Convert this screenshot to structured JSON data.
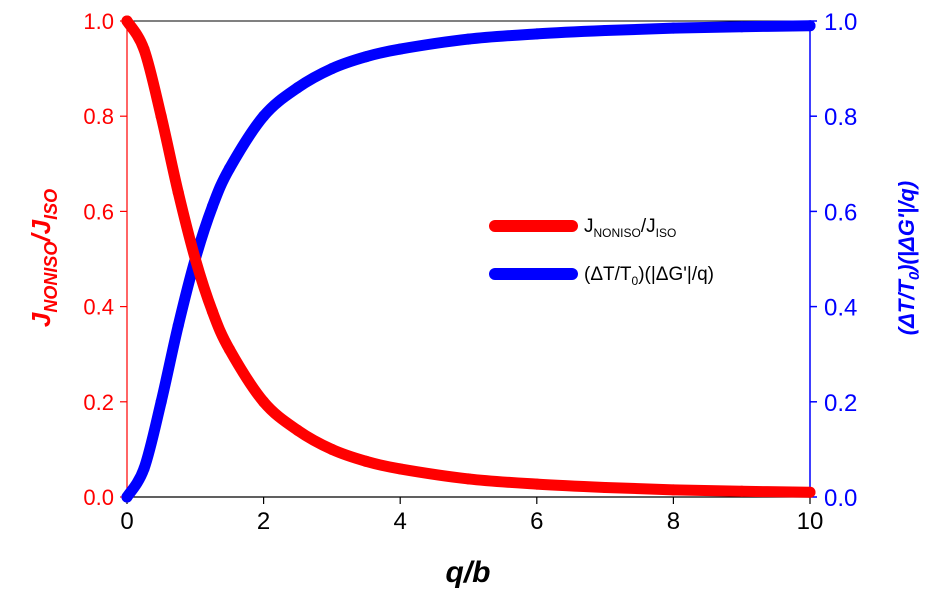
{
  "chart_data": {
    "type": "line",
    "xlabel": "q/b",
    "ylabel_left": "J_NONISO/J_ISO",
    "ylabel_right": "(ΔT/T0)(|ΔG'|/q)",
    "xlim": [
      0,
      10
    ],
    "ylim_left": [
      0,
      1
    ],
    "ylim_right": [
      0,
      1
    ],
    "x_ticks": [
      "0",
      "2",
      "4",
      "6",
      "8",
      "10"
    ],
    "y_ticks_left": [
      "0.0",
      "0.2",
      "0.4",
      "0.6",
      "0.8",
      "1.0"
    ],
    "y_ticks_right": [
      "0.0",
      "0.2",
      "0.4",
      "0.6",
      "0.8",
      "1.0"
    ],
    "grid": false,
    "legend_position": "center-right",
    "colors": {
      "left_axis": "#ff0000",
      "right_axis": "#0000ff",
      "series_red": "#ff0000",
      "series_blue": "#0000ff"
    },
    "x": [
      0,
      0.25,
      0.5,
      0.75,
      1,
      1.25,
      1.5,
      2,
      2.5,
      3,
      3.5,
      4,
      5,
      6,
      7,
      8,
      9,
      10
    ],
    "series": [
      {
        "name": "J_NONISO/J_ISO",
        "axis": "left",
        "values": [
          1.0,
          0.94,
          0.8,
          0.64,
          0.5,
          0.39,
          0.31,
          0.2,
          0.14,
          0.1,
          0.075,
          0.059,
          0.038,
          0.027,
          0.02,
          0.015,
          0.012,
          0.01
        ]
      },
      {
        "name": "(ΔT/T0)(|ΔG'|/q)",
        "axis": "right",
        "values": [
          0.0,
          0.06,
          0.2,
          0.36,
          0.5,
          0.61,
          0.69,
          0.8,
          0.86,
          0.9,
          0.925,
          0.941,
          0.962,
          0.973,
          0.98,
          0.985,
          0.988,
          0.99
        ]
      }
    ]
  },
  "legend": {
    "item1": {
      "main": "J",
      "sub1": "NONISO",
      "mid": "/J",
      "sub2": "ISO"
    },
    "item2": {
      "pre": "(ΔT/T",
      "sub": "0",
      "post": ")(|ΔG'|/q)"
    }
  },
  "axis_labels": {
    "left": {
      "main": "J",
      "sub1": "NONISO",
      "mid": "/J",
      "sub2": "ISO"
    },
    "right": {
      "pre": "(ΔT/T",
      "sub": "0",
      "post": ")(|ΔG'|/q)"
    },
    "bottom": "q/b"
  }
}
